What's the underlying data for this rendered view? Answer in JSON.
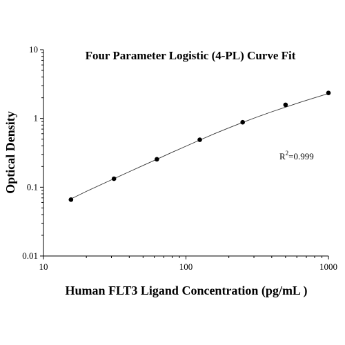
{
  "chart_data": {
    "type": "scatter",
    "title": "Four Parameter Logistic (4-PL) Curve Fit",
    "xlabel": "Human FLT3 Ligand Concentration (pg/mL )",
    "ylabel": "Optical Density",
    "xscale": "log",
    "yscale": "log",
    "xlim": [
      10,
      1000
    ],
    "ylim": [
      0.01,
      10
    ],
    "x_ticks": [
      10,
      100,
      1000
    ],
    "x_tick_labels": [
      "10",
      "100",
      "1000"
    ],
    "y_ticks": [
      0.01,
      0.1,
      1,
      10
    ],
    "y_tick_labels": [
      "0.01",
      "0.1",
      "1",
      "10"
    ],
    "grid": false,
    "points": {
      "x": [
        15.6,
        31.25,
        62.5,
        125,
        250,
        500,
        1000
      ],
      "y": [
        0.066,
        0.133,
        0.255,
        0.49,
        0.88,
        1.58,
        2.35
      ]
    },
    "fit_curve": {
      "model": "4-PL",
      "x": [
        15,
        20,
        30,
        40,
        50,
        62.5,
        80,
        100,
        125,
        160,
        200,
        250,
        320,
        400,
        500,
        640,
        800,
        1000
      ],
      "y": [
        0.065,
        0.087,
        0.128,
        0.168,
        0.207,
        0.255,
        0.322,
        0.395,
        0.485,
        0.605,
        0.73,
        0.875,
        1.06,
        1.25,
        1.46,
        1.73,
        2.0,
        2.3
      ]
    },
    "annotation": {
      "base": "R",
      "sup": "2",
      "value": "=0.999"
    }
  }
}
